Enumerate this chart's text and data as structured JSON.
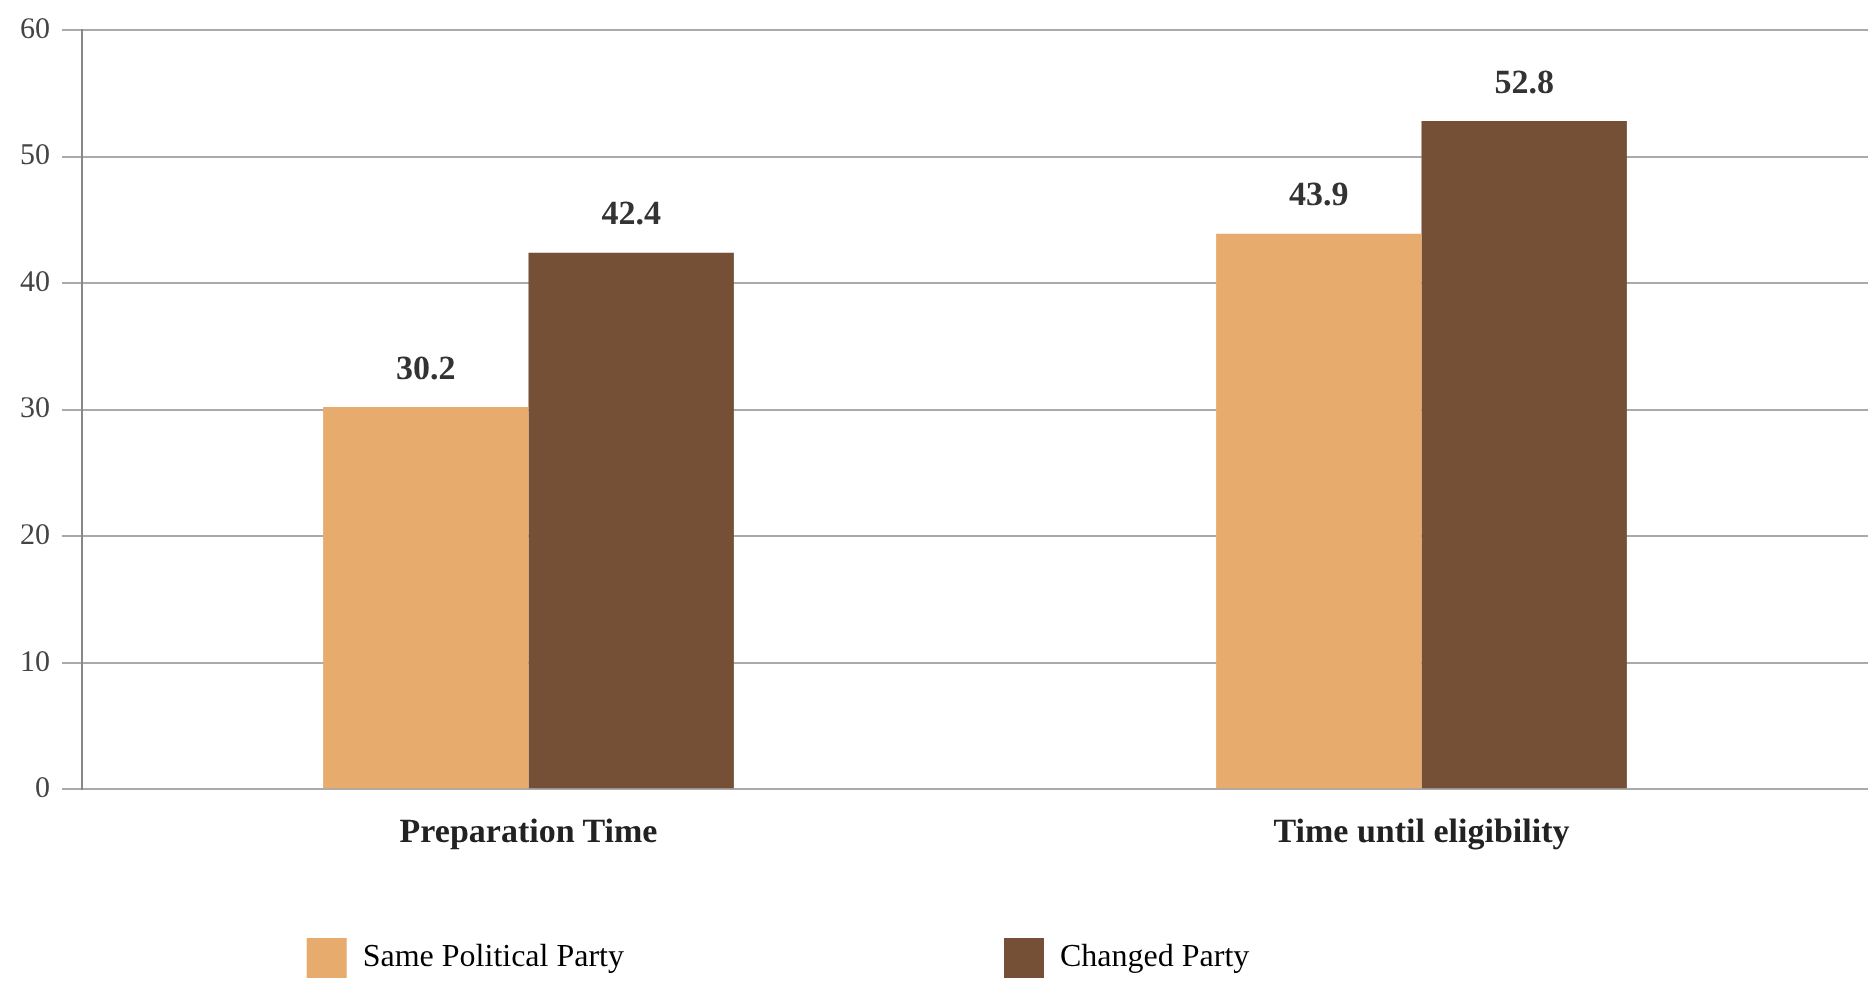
{
  "chart_data": {
    "type": "bar",
    "categories": [
      "Preparation Time",
      "Time until eligibility"
    ],
    "series": [
      {
        "name": "Same Political Party",
        "color": "#e8ab6e",
        "values": [
          30.2,
          43.9
        ]
      },
      {
        "name": "Changed Party",
        "color": "#765036",
        "values": [
          42.4,
          52.8
        ]
      }
    ],
    "ylim": [
      0,
      60
    ],
    "yticks": [
      0,
      10,
      20,
      30,
      40,
      50,
      60
    ],
    "grid": "y",
    "legend": "bottom",
    "data_labels": true
  }
}
